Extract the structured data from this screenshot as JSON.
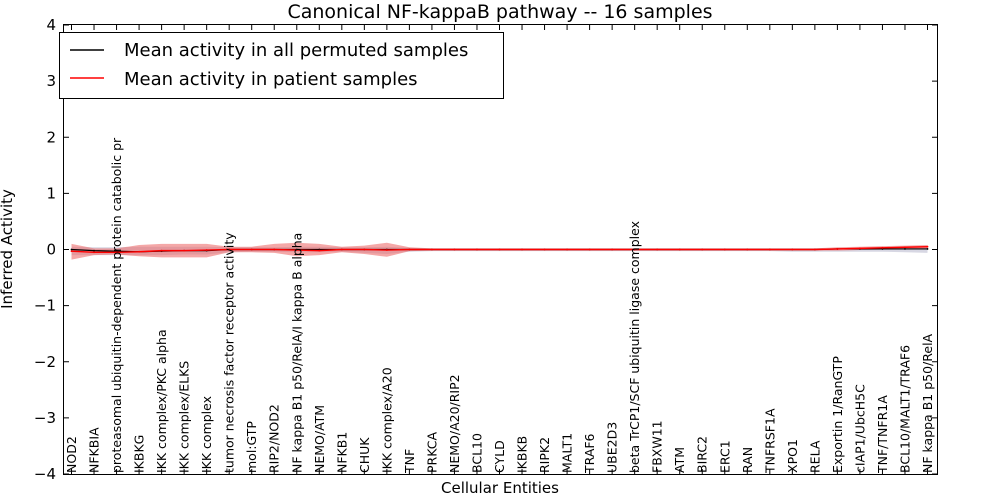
{
  "chart_data": {
    "type": "line",
    "title": "Canonical NF-kappaB pathway -- 16 samples",
    "xlabel": "Cellular Entities",
    "ylabel": "Inferred Activity",
    "ylim": [
      -4,
      4
    ],
    "yticks": [
      -4,
      -3,
      -2,
      -1,
      0,
      1,
      2,
      3,
      4
    ],
    "yticklabels": [
      "−4",
      "−3",
      "−2",
      "−1",
      "0",
      "1",
      "2",
      "3",
      "4"
    ],
    "grid": false,
    "legend_position": "top-left",
    "categories": [
      "NOD2",
      "NFKBIA",
      "proteasomal ubiquitin-dependent protein catabolic pr",
      "IKBKG",
      "IKK complex/PKC alpha",
      "IKK complex/ELKS",
      "IKK complex",
      "tumor necrosis factor receptor activity",
      "mol:GTP",
      "RIP2/NOD2",
      "NF kappa B1 p50/RelA/I kappa B alpha",
      "NEMO/ATM",
      "NFKB1",
      "CHUK",
      "IKK complex/A20",
      "TNF",
      "PRKCA",
      "NEMO/A20/RIP2",
      "BCL10",
      "CYLD",
      "IKBKB",
      "RIPK2",
      "MALT1",
      "TRAF6",
      "UBE2D3",
      "beta TrCP1/SCF ubiquitin ligase complex",
      "FBXW11",
      "ATM",
      "BIRC2",
      "ERC1",
      "RAN",
      "TNFRSF1A",
      "XPO1",
      "RELA",
      "Exportin 1/RanGTP",
      "cIAP1/UbcH5C",
      "TNF/TNFR1A",
      "BCL10/MALT1/TRAF6",
      "NF kappa B1 p50/RelA"
    ],
    "series": [
      {
        "name": "Mean activity in all permuted samples",
        "color": "#000000",
        "values": [
          0.0,
          -0.02,
          -0.03,
          -0.04,
          -0.03,
          -0.02,
          -0.02,
          0.0,
          0.0,
          0.0,
          0.0,
          0.0,
          0.0,
          0.0,
          0.0,
          0.0,
          0.0,
          0.0,
          0.0,
          0.0,
          0.0,
          0.0,
          0.0,
          0.0,
          0.0,
          0.0,
          0.0,
          0.0,
          0.0,
          0.0,
          0.0,
          0.0,
          0.0,
          0.0,
          0.01,
          0.01,
          0.01,
          0.01,
          0.01
        ],
        "band_low": [
          -0.1,
          -0.1,
          -0.1,
          -0.1,
          -0.1,
          -0.09,
          -0.09,
          -0.05,
          -0.04,
          -0.04,
          -0.05,
          -0.05,
          -0.04,
          -0.06,
          -0.08,
          -0.04,
          -0.03,
          -0.03,
          -0.03,
          -0.03,
          -0.03,
          -0.03,
          -0.03,
          -0.03,
          -0.03,
          -0.03,
          -0.03,
          -0.03,
          -0.03,
          -0.03,
          -0.03,
          -0.03,
          -0.04,
          -0.04,
          -0.04,
          -0.04,
          -0.04,
          -0.05,
          -0.06
        ],
        "band_high": [
          0.05,
          0.04,
          0.04,
          0.05,
          0.05,
          0.05,
          0.05,
          0.04,
          0.04,
          0.04,
          0.05,
          0.05,
          0.04,
          0.04,
          0.05,
          0.03,
          0.02,
          0.02,
          0.02,
          0.02,
          0.02,
          0.02,
          0.02,
          0.02,
          0.02,
          0.02,
          0.02,
          0.02,
          0.02,
          0.02,
          0.02,
          0.02,
          0.02,
          0.02,
          0.03,
          0.03,
          0.04,
          0.04,
          0.05
        ]
      },
      {
        "name": "Mean activity in patient samples",
        "color": "#ff0000",
        "values": [
          -0.03,
          -0.05,
          -0.05,
          -0.04,
          -0.02,
          -0.02,
          -0.01,
          0.0,
          0.0,
          0.0,
          -0.01,
          -0.02,
          0.0,
          0.0,
          -0.01,
          0.0,
          0.0,
          0.0,
          0.0,
          0.0,
          0.0,
          0.0,
          0.0,
          0.0,
          0.0,
          0.0,
          0.0,
          0.0,
          0.0,
          0.0,
          0.0,
          0.0,
          0.0,
          0.0,
          0.01,
          0.02,
          0.03,
          0.04,
          0.05
        ],
        "band_low": [
          -0.18,
          -0.1,
          -0.09,
          -0.12,
          -0.14,
          -0.14,
          -0.14,
          -0.05,
          -0.05,
          -0.06,
          -0.12,
          -0.1,
          -0.05,
          -0.08,
          -0.13,
          -0.03,
          -0.02,
          -0.02,
          -0.02,
          -0.02,
          -0.02,
          -0.02,
          -0.02,
          -0.02,
          -0.02,
          -0.02,
          -0.02,
          -0.02,
          -0.02,
          -0.02,
          -0.02,
          -0.02,
          -0.02,
          -0.02,
          -0.02,
          -0.01,
          0.0,
          0.01,
          0.02
        ],
        "band_high": [
          0.1,
          0.02,
          0.02,
          0.08,
          0.1,
          0.1,
          0.1,
          0.05,
          0.05,
          0.1,
          0.12,
          0.1,
          0.05,
          0.07,
          0.12,
          0.04,
          0.02,
          0.02,
          0.02,
          0.02,
          0.02,
          0.02,
          0.02,
          0.02,
          0.02,
          0.02,
          0.02,
          0.02,
          0.02,
          0.02,
          0.02,
          0.02,
          0.02,
          0.02,
          0.04,
          0.05,
          0.06,
          0.07,
          0.08
        ]
      }
    ],
    "colors": {
      "permuted_band": "#c9c9d9",
      "patient_band": "#ec6e6e"
    }
  }
}
